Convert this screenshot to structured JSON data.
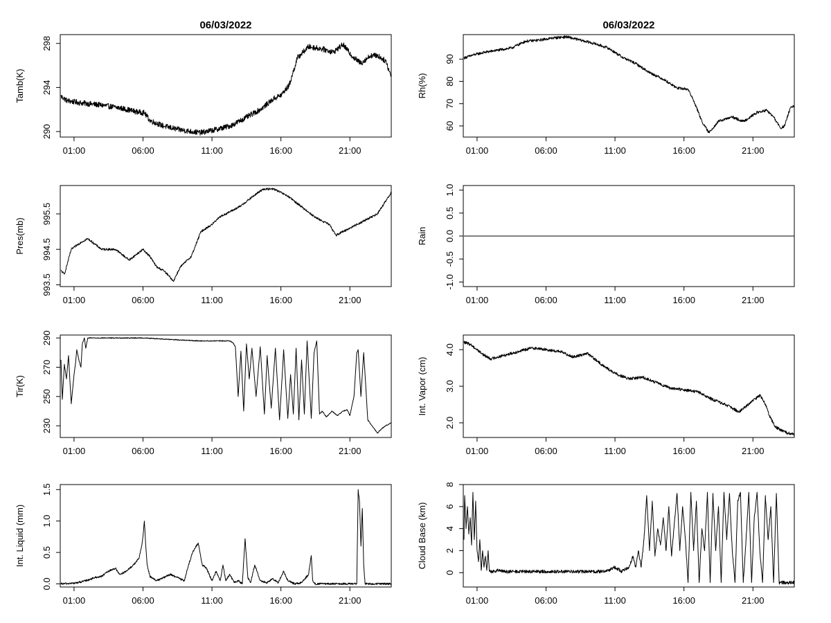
{
  "chart_data": [
    {
      "type": "line",
      "title": "06/03/2022",
      "xlabel": "",
      "ylabel": "Tamb(K)",
      "xlim": [
        0,
        24
      ],
      "ylim": [
        289.5,
        298.8
      ],
      "xticks": [
        1,
        6,
        11,
        16,
        21
      ],
      "xtick_labels": [
        "01:00",
        "06:00",
        "11:00",
        "16:00",
        "21:00"
      ],
      "yticks": [
        290,
        294,
        298
      ],
      "ytick_labels": [
        "290",
        "294",
        "298"
      ],
      "noise": 0.25,
      "x": [
        0.05,
        0.5,
        1.5,
        3,
        4.5,
        5.5,
        6.1,
        6.5,
        7.5,
        8.5,
        9.5,
        10.2,
        11.0,
        12.0,
        12.5,
        13.5,
        14.5,
        15.5,
        16.0,
        16.6,
        17.2,
        18.0,
        19.0,
        19.8,
        20.5,
        21.2,
        21.8,
        22.5,
        23.0,
        23.6,
        24.0
      ],
      "y": [
        293.2,
        292.8,
        292.6,
        292.4,
        292.1,
        291.8,
        291.7,
        291.0,
        290.5,
        290.2,
        290.0,
        289.9,
        290.1,
        290.4,
        290.6,
        291.3,
        292.0,
        293.0,
        293.3,
        294.2,
        296.7,
        297.7,
        297.5,
        297.2,
        297.9,
        296.8,
        296.2,
        296.9,
        296.9,
        296.4,
        295.0
      ]
    },
    {
      "type": "line",
      "title": "06/03/2022",
      "xlabel": "",
      "ylabel": "Rh(%)",
      "xlim": [
        0,
        24
      ],
      "ylim": [
        55,
        101
      ],
      "xticks": [
        1,
        6,
        11,
        16,
        21
      ],
      "xtick_labels": [
        "01:00",
        "06:00",
        "11:00",
        "16:00",
        "21:00"
      ],
      "yticks": [
        60,
        70,
        80,
        90
      ],
      "ytick_labels": [
        "60",
        "70",
        "80",
        "90"
      ],
      "noise": 0.6,
      "x": [
        0.05,
        0.8,
        1.5,
        2.5,
        3.5,
        4.5,
        5.5,
        6.5,
        7.5,
        8.5,
        9.5,
        10.5,
        11.5,
        12.5,
        13.5,
        14.5,
        15.5,
        16.3,
        16.8,
        17.3,
        17.8,
        18.5,
        19.5,
        20.3,
        20.8,
        21.3,
        22.0,
        22.5,
        23.0,
        23.3,
        23.7,
        24.0
      ],
      "y": [
        90.5,
        92,
        93,
        94,
        95,
        98,
        98.5,
        99.5,
        100,
        98.5,
        97,
        95,
        91,
        88,
        84,
        81,
        77,
        76.5,
        70,
        62,
        57,
        62,
        64,
        62,
        64,
        66,
        67,
        64,
        59,
        60,
        68,
        69
      ]
    },
    {
      "type": "line",
      "title": "",
      "xlabel": "",
      "ylabel": "Pres(mb)",
      "xlim": [
        0,
        24
      ],
      "ylim": [
        993.45,
        996.3
      ],
      "xticks": [
        1,
        6,
        11,
        16,
        21
      ],
      "xtick_labels": [
        "01:00",
        "06:00",
        "11:00",
        "16:00",
        "21:00"
      ],
      "yticks": [
        993.5,
        994.5,
        995.5
      ],
      "ytick_labels": [
        "993.5",
        "994.5",
        "995.5"
      ],
      "noise": 0.03,
      "x": [
        0.05,
        0.3,
        0.8,
        1.5,
        2.0,
        3.0,
        4.0,
        5.0,
        6.0,
        6.5,
        7.0,
        7.5,
        8.0,
        8.2,
        8.7,
        9.5,
        10.2,
        11.0,
        11.5,
        12.0,
        13.0,
        14.0,
        14.7,
        15.5,
        16.5,
        17.5,
        18.5,
        19.5,
        20.0,
        21.0,
        22.0,
        23.0,
        23.5,
        24.0
      ],
      "y": [
        993.9,
        993.8,
        994.5,
        994.7,
        994.8,
        994.5,
        994.5,
        994.2,
        994.5,
        994.3,
        994.0,
        993.9,
        993.7,
        993.6,
        994.0,
        994.3,
        995.0,
        995.2,
        995.4,
        995.5,
        995.7,
        996.0,
        996.2,
        996.2,
        996.0,
        995.7,
        995.4,
        995.2,
        994.9,
        995.1,
        995.3,
        995.5,
        995.8,
        996.1
      ]
    },
    {
      "type": "line",
      "title": "",
      "xlabel": "",
      "ylabel": "Rain",
      "xlim": [
        0,
        24
      ],
      "ylim": [
        -1.1,
        1.1
      ],
      "xticks": [
        1,
        6,
        11,
        16,
        21
      ],
      "xtick_labels": [
        "01:00",
        "06:00",
        "11:00",
        "16:00",
        "21:00"
      ],
      "yticks": [
        -1.0,
        -0.5,
        0.0,
        0.5,
        1.0
      ],
      "ytick_labels": [
        "-1.0",
        "-0.5",
        "0.0",
        "0.5",
        "1.0"
      ],
      "noise": 0,
      "x": [
        0.05,
        24.0
      ],
      "y": [
        0.0,
        0.0
      ]
    },
    {
      "type": "line",
      "title": "",
      "xlabel": "",
      "ylabel": "Tir(K)",
      "xlim": [
        0,
        24
      ],
      "ylim": [
        222,
        292
      ],
      "xticks": [
        1,
        6,
        11,
        16,
        21
      ],
      "xtick_labels": [
        "01:00",
        "06:00",
        "11:00",
        "16:00",
        "21:00"
      ],
      "yticks": [
        230,
        250,
        270,
        290
      ],
      "ytick_labels": [
        "230",
        "250",
        "270",
        "290"
      ],
      "noise": 0.3,
      "x": [
        0.05,
        0.15,
        0.3,
        0.45,
        0.6,
        0.8,
        1.0,
        1.1,
        1.2,
        1.35,
        1.5,
        1.6,
        1.75,
        1.85,
        2.0,
        2.3,
        2.8,
        4.0,
        6.0,
        8.0,
        10.0,
        11.5,
        12.0,
        12.3,
        12.5,
        12.7,
        12.9,
        13.1,
        13.3,
        13.5,
        13.7,
        13.9,
        14.2,
        14.5,
        14.8,
        15.0,
        15.3,
        15.6,
        15.9,
        16.2,
        16.5,
        16.7,
        16.9,
        17.1,
        17.3,
        17.5,
        17.7,
        17.9,
        18.2,
        18.4,
        18.6,
        18.8,
        19.0,
        19.3,
        19.7,
        20.1,
        20.5,
        20.8,
        21.0,
        21.3,
        21.5,
        21.6,
        21.8,
        22.0,
        22.3,
        22.6,
        23.0,
        23.3,
        23.6,
        24.0
      ],
      "y": [
        275,
        248,
        272,
        262,
        278,
        245,
        265,
        272,
        282,
        275,
        270,
        286,
        290,
        283,
        290,
        290,
        290,
        290,
        290,
        289,
        288,
        288,
        288,
        288,
        287,
        284,
        250,
        281,
        240,
        286,
        262,
        283,
        250,
        284,
        238,
        278,
        242,
        283,
        234,
        282,
        235,
        265,
        238,
        283,
        234,
        275,
        238,
        288,
        235,
        280,
        288,
        238,
        240,
        236,
        240,
        237,
        240,
        241,
        237,
        250,
        280,
        282,
        250,
        280,
        234,
        230,
        225,
        228,
        230,
        232
      ]
    },
    {
      "type": "line",
      "title": "",
      "xlabel": "",
      "ylabel": "Int. Vapor (cm)",
      "xlim": [
        0,
        24
      ],
      "ylim": [
        1.6,
        4.4
      ],
      "xticks": [
        1,
        6,
        11,
        16,
        21
      ],
      "xtick_labels": [
        "01:00",
        "06:00",
        "11:00",
        "16:00",
        "21:00"
      ],
      "yticks": [
        2.0,
        3.0,
        4.0
      ],
      "ytick_labels": [
        "2.0",
        "3.0",
        "4.0"
      ],
      "noise": 0.04,
      "x": [
        0.05,
        0.5,
        1.0,
        1.5,
        2.0,
        3.0,
        4.0,
        5.0,
        6.0,
        7.0,
        8.0,
        9.0,
        10.0,
        11.0,
        12.0,
        13.0,
        14.0,
        15.0,
        16.0,
        17.0,
        18.0,
        19.0,
        20.0,
        20.5,
        21.0,
        21.5,
        21.8,
        22.2,
        22.6,
        23.0,
        23.5,
        24.0
      ],
      "y": [
        4.2,
        4.15,
        4.0,
        3.85,
        3.75,
        3.85,
        3.95,
        4.05,
        4.0,
        3.95,
        3.8,
        3.9,
        3.6,
        3.35,
        3.2,
        3.25,
        3.1,
        2.95,
        2.9,
        2.85,
        2.65,
        2.5,
        2.3,
        2.45,
        2.6,
        2.75,
        2.6,
        2.2,
        1.9,
        1.8,
        1.72,
        1.7
      ]
    },
    {
      "type": "line",
      "title": "",
      "xlabel": "",
      "ylabel": "Int. Liquid (mm)",
      "xlim": [
        0,
        24
      ],
      "ylim": [
        -0.05,
        1.58
      ],
      "xticks": [
        1,
        6,
        11,
        16,
        21
      ],
      "xtick_labels": [
        "01:00",
        "06:00",
        "11:00",
        "16:00",
        "21:00"
      ],
      "yticks": [
        0.0,
        0.5,
        1.0,
        1.5
      ],
      "ytick_labels": [
        "0.0",
        "0.5",
        "1.0",
        "1.5"
      ],
      "noise": 0.015,
      "x": [
        0.05,
        1.0,
        1.5,
        2.0,
        2.5,
        3.0,
        3.5,
        4.0,
        4.3,
        4.8,
        5.3,
        5.7,
        5.9,
        6.0,
        6.1,
        6.2,
        6.3,
        6.5,
        7.0,
        7.5,
        8.0,
        8.5,
        9.0,
        9.3,
        9.6,
        10.0,
        10.3,
        10.6,
        11.0,
        11.3,
        11.6,
        11.8,
        12.0,
        12.3,
        12.6,
        12.9,
        13.2,
        13.4,
        13.6,
        13.8,
        14.1,
        14.5,
        15.0,
        15.4,
        15.8,
        16.2,
        16.5,
        17.0,
        17.5,
        18.0,
        18.2,
        18.3,
        18.5,
        19.0,
        20.0,
        21.0,
        21.5,
        21.6,
        21.7,
        21.8,
        21.9,
        22.0,
        22.1,
        22.5,
        23.0,
        24.0
      ],
      "y": [
        0.0,
        0.01,
        0.03,
        0.06,
        0.1,
        0.12,
        0.2,
        0.25,
        0.15,
        0.2,
        0.3,
        0.4,
        0.6,
        0.75,
        1.0,
        0.6,
        0.3,
        0.12,
        0.05,
        0.1,
        0.15,
        0.1,
        0.05,
        0.3,
        0.5,
        0.65,
        0.3,
        0.25,
        0.05,
        0.2,
        0.05,
        0.3,
        0.05,
        0.15,
        0.02,
        0.05,
        0.0,
        0.72,
        0.1,
        0.02,
        0.3,
        0.05,
        0.02,
        0.08,
        0.02,
        0.2,
        0.05,
        0.0,
        0.02,
        0.15,
        0.45,
        0.05,
        0.0,
        0.0,
        0.0,
        0.0,
        0.0,
        1.5,
        1.3,
        0.6,
        1.2,
        0.3,
        0.0,
        0.0,
        0.0,
        0.0
      ]
    },
    {
      "type": "line",
      "title": "",
      "xlabel": "",
      "ylabel": "Cloud Base (km)",
      "xlim": [
        0,
        24
      ],
      "ylim": [
        -1.3,
        8.0
      ],
      "xticks": [
        1,
        6,
        11,
        16,
        21
      ],
      "xtick_labels": [
        "01:00",
        "06:00",
        "11:00",
        "16:00",
        "21:00"
      ],
      "yticks": [
        0,
        2,
        4,
        6,
        8
      ],
      "ytick_labels": [
        "0",
        "2",
        "4",
        "6",
        "8"
      ],
      "noise": 0.15,
      "x": [
        0.05,
        0.1,
        0.2,
        0.3,
        0.4,
        0.5,
        0.6,
        0.7,
        0.8,
        0.9,
        1.0,
        1.1,
        1.2,
        1.3,
        1.4,
        1.5,
        1.6,
        1.7,
        1.8,
        1.9,
        2.0,
        2.2,
        2.5,
        3.0,
        3.5,
        4.0,
        5.0,
        6.0,
        7.0,
        8.0,
        9.0,
        10.0,
        10.5,
        11.0,
        11.5,
        12.0,
        12.3,
        12.5,
        12.7,
        12.9,
        13.1,
        13.3,
        13.5,
        13.7,
        13.9,
        14.1,
        14.3,
        14.5,
        14.7,
        14.9,
        15.1,
        15.3,
        15.5,
        15.7,
        15.9,
        16.1,
        16.3,
        16.5,
        16.7,
        16.9,
        17.1,
        17.3,
        17.5,
        17.7,
        17.9,
        18.1,
        18.3,
        18.5,
        18.7,
        18.9,
        19.1,
        19.3,
        19.5,
        19.7,
        19.9,
        20.1,
        20.3,
        20.5,
        20.7,
        20.9,
        21.1,
        21.3,
        21.5,
        21.7,
        21.9,
        22.1,
        22.3,
        22.5,
        22.7,
        22.9,
        23.0,
        24.0
      ],
      "y": [
        3.0,
        7.0,
        4.0,
        6.0,
        3.5,
        5.0,
        2.5,
        7.3,
        3.0,
        6.5,
        2.0,
        1.0,
        3.0,
        0.2,
        2.0,
        0.5,
        1.5,
        0.2,
        2.0,
        0.1,
        0.1,
        0.1,
        0.2,
        0.1,
        0.1,
        0.1,
        0.1,
        0.1,
        0.1,
        0.1,
        0.1,
        0.1,
        0.2,
        0.5,
        0.1,
        0.5,
        1.5,
        0.5,
        2.0,
        0.5,
        3.0,
        7.0,
        2.0,
        6.5,
        1.5,
        4.0,
        2.5,
        5.0,
        2.0,
        6.0,
        1.5,
        4.5,
        7.2,
        2.0,
        6.0,
        3.0,
        -0.9,
        7.3,
        2.0,
        6.5,
        -0.9,
        4.0,
        2.0,
        7.3,
        -0.9,
        7.2,
        2.0,
        6.0,
        -0.9,
        7.3,
        3.0,
        7.2,
        2.0,
        -0.9,
        6.5,
        7.3,
        -0.9,
        3.0,
        7.3,
        -0.9,
        5.0,
        7.3,
        2.0,
        -0.9,
        7.0,
        3.0,
        6.0,
        -0.9,
        7.2,
        -0.9,
        -0.9,
        -0.9
      ]
    }
  ]
}
